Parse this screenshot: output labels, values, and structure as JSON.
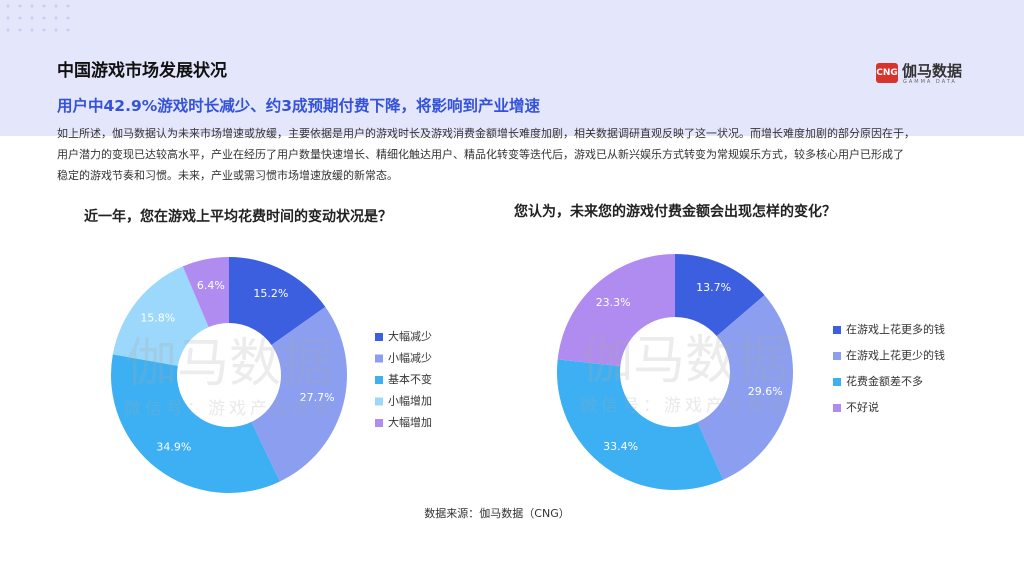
{
  "header": {
    "title": "中国游戏市场发展状况",
    "subtitle": "用户中42.9%游戏时长减少、约3成预期付费下降，将影响到产业增速"
  },
  "body": {
    "lines": [
      "如上所述，伽马数据认为未来市场增速或放缓，主要依据是用户的游戏时长及游戏消费金额增长难度加剧，相关数据调研直观反映了这一状况。而增长难度加剧的部分原因在于，",
      "用户潜力的变现已达较高水平，产业在经历了用户数量快速增长、精细化触达用户、精品化转变等迭代后，游戏已从新兴娱乐方式转变为常规娱乐方式，较多核心用户已形成了",
      "稳定的游戏节奏和习惯。未来，产业或需习惯市场增速放缓的新常态。"
    ]
  },
  "logo": {
    "mark": "CNG",
    "name": "伽马数据",
    "sub": "GAMMA DATA"
  },
  "watermark": {
    "main": "伽马数据",
    "sub": "微信号：游戏产业报告"
  },
  "source": "数据来源：伽马数据（CNG）",
  "chart_data": [
    {
      "type": "donut",
      "title": "近一年，您在游戏上平均花费时间的变动状况是？",
      "categories": [
        "大幅减少",
        "小幅减少",
        "基本不变",
        "小幅增加",
        "大幅增加"
      ],
      "values": [
        15.2,
        27.7,
        34.9,
        15.8,
        6.4
      ],
      "value_labels": [
        "15.2%",
        "27.7%",
        "34.9%",
        "15.8%",
        "6.4%"
      ],
      "colors": [
        "#3c5fe0",
        "#8b9ef0",
        "#3cb0f2",
        "#9cd8fb",
        "#b08cf0"
      ]
    },
    {
      "type": "donut",
      "title": "您认为，未来您的游戏付费金额会出现怎样的变化？",
      "categories": [
        "在游戏上花更多的钱",
        "在游戏上花更少的钱",
        "花费金额差不多",
        "不好说"
      ],
      "values": [
        13.7,
        29.6,
        33.4,
        23.3
      ],
      "value_labels": [
        "13.7%",
        "29.6%",
        "33.4%",
        "23.3%"
      ],
      "colors": [
        "#3c5fe0",
        "#8b9ef0",
        "#3cb0f2",
        "#b08cf0"
      ]
    }
  ]
}
